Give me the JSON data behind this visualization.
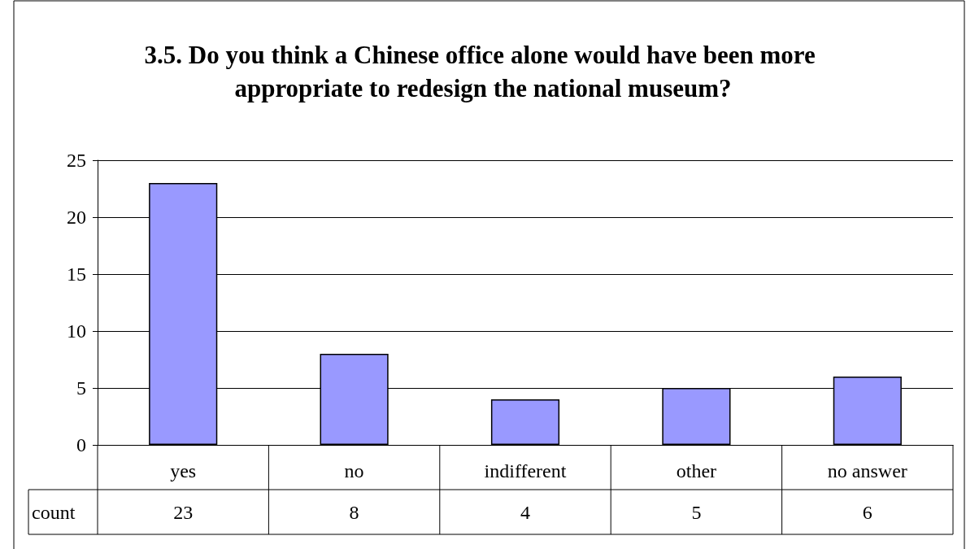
{
  "chart_data": {
    "type": "bar",
    "title": "3.5. Do you think a Chinese office alone would have been more appropriate to redesign the national museum?",
    "categories": [
      "yes",
      "no",
      "indifferent",
      "other",
      "no answer"
    ],
    "series": [
      {
        "name": "count",
        "color": "#9999ff",
        "values": [
          23,
          8,
          4,
          5,
          6
        ]
      }
    ],
    "ylim": [
      0,
      25
    ],
    "yticks": [
      0,
      5,
      10,
      15,
      20,
      25
    ],
    "grid": "y",
    "data_labels": true
  }
}
